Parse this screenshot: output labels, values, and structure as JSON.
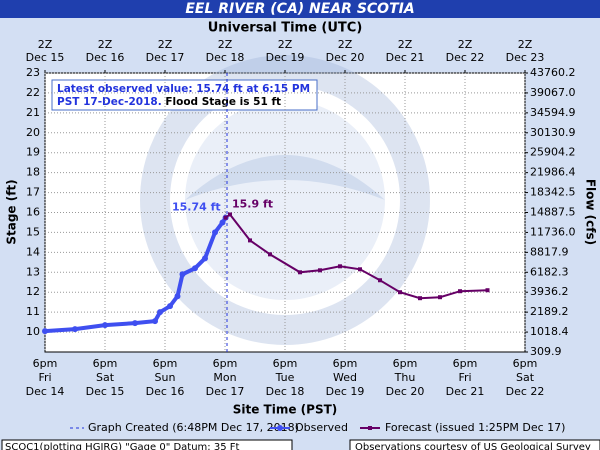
{
  "chart_data": {
    "type": "line",
    "title": "EEL RIVER (CA) NEAR SCOTIA",
    "x2_label": "Universal Time (UTC)",
    "x_label": "Site Time (PST)",
    "y_label": "Stage (ft)",
    "y2_label": "Flow (cfs)",
    "annotation": [
      "Latest observed value: 15.74 ft at 6:15 PM",
      "PST 17-Dec-2018.",
      "Flood Stage is 51 ft"
    ],
    "footer": [
      "SCOC1(plotting HGIRG) \"Gage 0\" Datum: 35 Ft",
      "Observations courtesy of US Geological Survey"
    ],
    "xlim": [
      "2018-12-14T18:00-08:00",
      "2018-12-22T18:00-08:00"
    ],
    "xticks": [
      {
        "value": "2018-12-14T18:00-08:00",
        "label": [
          "6pm",
          "Fri",
          "Dec 14"
        ]
      },
      {
        "value": "2018-12-15T18:00-08:00",
        "label": [
          "6pm",
          "Sat",
          "Dec 15"
        ]
      },
      {
        "value": "2018-12-16T18:00-08:00",
        "label": [
          "6pm",
          "Sun",
          "Dec 16"
        ]
      },
      {
        "value": "2018-12-17T18:00-08:00",
        "label": [
          "6pm",
          "Mon",
          "Dec 17"
        ]
      },
      {
        "value": "2018-12-18T18:00-08:00",
        "label": [
          "6pm",
          "Tue",
          "Dec 18"
        ]
      },
      {
        "value": "2018-12-19T18:00-08:00",
        "label": [
          "6pm",
          "Wed",
          "Dec 19"
        ]
      },
      {
        "value": "2018-12-20T18:00-08:00",
        "label": [
          "6pm",
          "Thu",
          "Dec 20"
        ]
      },
      {
        "value": "2018-12-21T18:00-08:00",
        "label": [
          "6pm",
          "Fri",
          "Dec 21"
        ]
      },
      {
        "value": "2018-12-22T18:00-08:00",
        "label": [
          "6pm",
          "Sat",
          "Dec 22"
        ]
      }
    ],
    "x2ticks": [
      {
        "value": "2018-12-15T02:00Z",
        "label": [
          "2Z",
          "Dec 15"
        ]
      },
      {
        "value": "2018-12-16T02:00Z",
        "label": [
          "2Z",
          "Dec 16"
        ]
      },
      {
        "value": "2018-12-17T02:00Z",
        "label": [
          "2Z",
          "Dec 17"
        ]
      },
      {
        "value": "2018-12-18T02:00Z",
        "label": [
          "2Z",
          "Dec 18"
        ]
      },
      {
        "value": "2018-12-19T02:00Z",
        "label": [
          "2Z",
          "Dec 19"
        ]
      },
      {
        "value": "2018-12-20T02:00Z",
        "label": [
          "2Z",
          "Dec 20"
        ]
      },
      {
        "value": "2018-12-21T02:00Z",
        "label": [
          "2Z",
          "Dec 21"
        ]
      },
      {
        "value": "2018-12-22T02:00Z",
        "label": [
          "2Z",
          "Dec 22"
        ]
      },
      {
        "value": "2018-12-23T02:00Z",
        "label": [
          "2Z",
          "Dec 23"
        ]
      }
    ],
    "ylim": [
      9,
      23
    ],
    "yticks": [
      10,
      11,
      12,
      13,
      14,
      15,
      16,
      17,
      18,
      19,
      20,
      21,
      22,
      23
    ],
    "y2lim": [
      309.9,
      43760.2
    ],
    "y2ticks": [
      309.9,
      1018.4,
      2189.2,
      3936.2,
      6182.3,
      8817.9,
      {
        "value": 11736,
        "label": "11736.0"
      },
      14887.5,
      18342.5,
      21986.4,
      25904.2,
      30130.9,
      34594.9,
      {
        "value": 39067,
        "label": "39067.0"
      },
      43760.2
    ],
    "grid": true,
    "graph_created": {
      "label": "Graph Created (6:48PM Dec 17, 2018)",
      "x": "2018-12-17T18:48-08:00",
      "color": "#2233dd"
    },
    "series": [
      {
        "name": "Observed",
        "color": "#3f4ff0",
        "marker": "circle",
        "x": [
          "2018-12-14T18:00-08:00",
          "2018-12-15T06:00-08:00",
          "2018-12-15T18:00-08:00",
          "2018-12-16T06:00-08:00",
          "2018-12-16T14:00-08:00",
          "2018-12-16T16:00-08:00",
          "2018-12-16T20:00-08:00",
          "2018-12-16T23:00-08:00",
          "2018-12-17T01:00-08:00",
          "2018-12-17T06:00-08:00",
          "2018-12-17T10:00-08:00",
          "2018-12-17T14:00-08:00",
          "2018-12-17T17:00-08:00",
          "2018-12-17T18:15-08:00"
        ],
        "values": [
          10.05,
          10.15,
          10.35,
          10.45,
          10.55,
          11.0,
          11.3,
          11.8,
          12.9,
          13.2,
          13.7,
          15.0,
          15.5,
          15.74
        ],
        "value_labels": [
          null,
          null,
          null,
          null,
          null,
          null,
          null,
          null,
          null,
          null,
          null,
          null,
          null,
          "15.74 ft"
        ]
      },
      {
        "name": "Forecast (issued 1:25PM Dec 17)",
        "color": "#660066",
        "marker": "square",
        "x": [
          "2018-12-17T18:15-08:00",
          "2018-12-17T20:00-08:00",
          "2018-12-18T04:00-08:00",
          "2018-12-18T12:00-08:00",
          "2018-12-19T00:00-08:00",
          "2018-12-19T08:00-08:00",
          "2018-12-19T16:00-08:00",
          "2018-12-20T00:00-08:00",
          "2018-12-20T08:00-08:00",
          "2018-12-20T16:00-08:00",
          "2018-12-21T00:00-08:00",
          "2018-12-21T08:00-08:00",
          "2018-12-21T16:00-08:00",
          "2018-12-22T03:00-08:00"
        ],
        "values": [
          15.74,
          15.9,
          14.6,
          13.9,
          13.0,
          13.1,
          13.3,
          13.15,
          12.6,
          12.0,
          11.7,
          11.75,
          12.05,
          12.1
        ],
        "value_labels": [
          null,
          "15.9 ft",
          null,
          null,
          null,
          null,
          null,
          null,
          null,
          null,
          null,
          null,
          null,
          null
        ]
      }
    ]
  }
}
